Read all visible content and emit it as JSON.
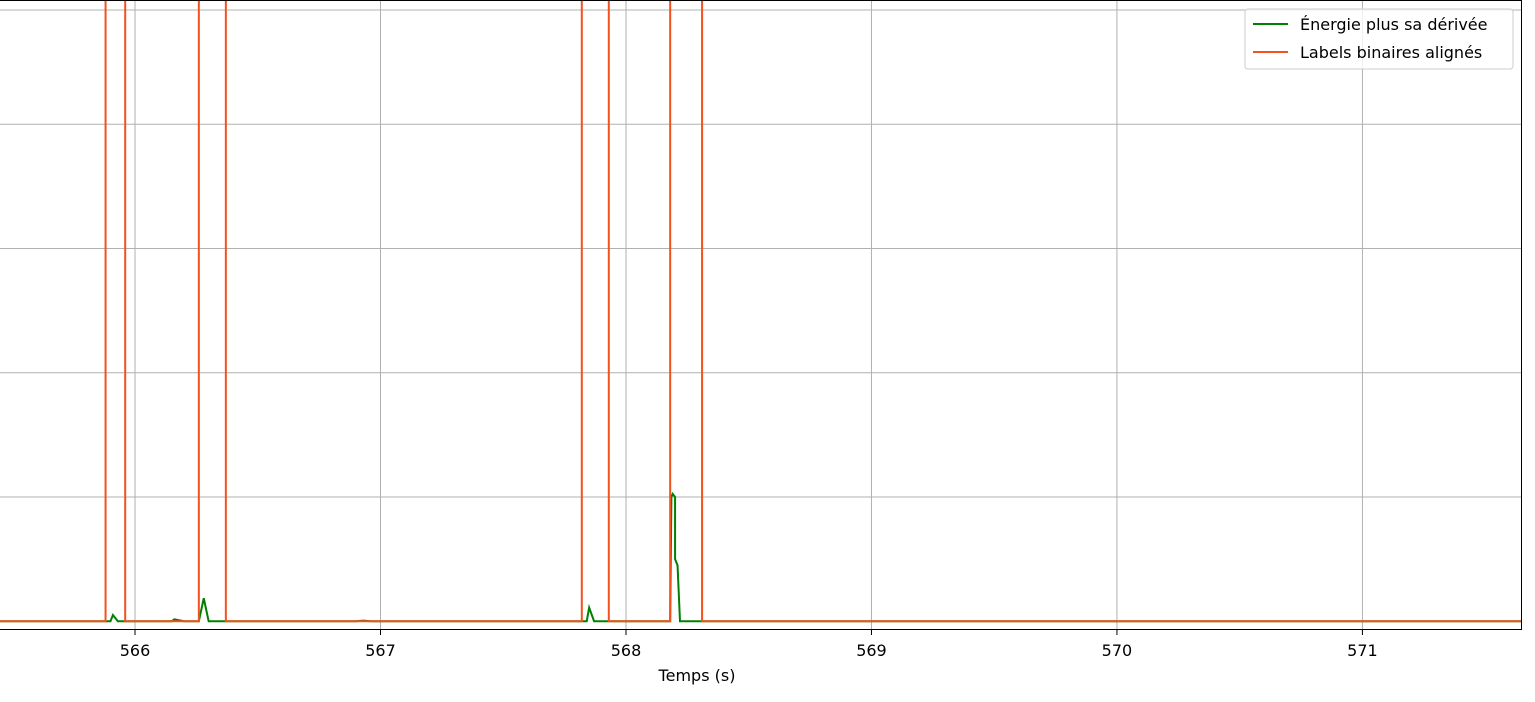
{
  "chart_data": {
    "type": "line",
    "title": "",
    "xlabel": "Temps (s)",
    "ylabel": "",
    "xlim": [
      565.45,
      571.65
    ],
    "ylim": [
      -0.0125,
      1.0
    ],
    "x_ticks": [
      566,
      567,
      568,
      569,
      570,
      571
    ],
    "x_tick_labels": [
      "566",
      "567",
      "568",
      "569",
      "570",
      "571"
    ],
    "y_gridlines": [
      0.2,
      0.4,
      0.6,
      0.8,
      0.984
    ],
    "grid": true,
    "legend_position": "top-right",
    "series": [
      {
        "name": "Énergie plus sa dérivée",
        "color": "#008000",
        "x": [
          565.45,
          565.9,
          565.91,
          565.93,
          565.97,
          566.15,
          566.16,
          566.2,
          566.26,
          566.28,
          566.3,
          566.38,
          566.9,
          566.93,
          566.96,
          567.84,
          567.85,
          567.87,
          567.9,
          568.18,
          568.185,
          568.19,
          568.2,
          568.2,
          568.21,
          568.22,
          568.3,
          571.65
        ],
        "y": [
          0.0,
          0.0,
          0.01,
          0.0,
          0.0,
          0.0,
          0.003,
          0.0,
          0.0,
          0.037,
          0.0,
          0.0,
          0.0,
          0.001,
          0.0,
          0.0,
          0.022,
          0.0,
          0.0,
          0.0,
          0.2,
          0.205,
          0.2,
          0.1,
          0.09,
          0.0,
          0.0,
          0.0
        ]
      },
      {
        "name": "Labels binaires alignés",
        "color": "#f4511e",
        "x": [
          565.45,
          565.88,
          565.88,
          565.96,
          565.96,
          566.26,
          566.26,
          566.37,
          566.37,
          567.82,
          567.82,
          567.93,
          567.93,
          568.18,
          568.18,
          568.31,
          568.31,
          571.65
        ],
        "y": [
          0,
          0,
          1,
          1,
          0,
          0,
          1,
          1,
          0,
          0,
          1,
          1,
          0,
          0,
          1,
          1,
          0,
          0
        ]
      }
    ]
  }
}
